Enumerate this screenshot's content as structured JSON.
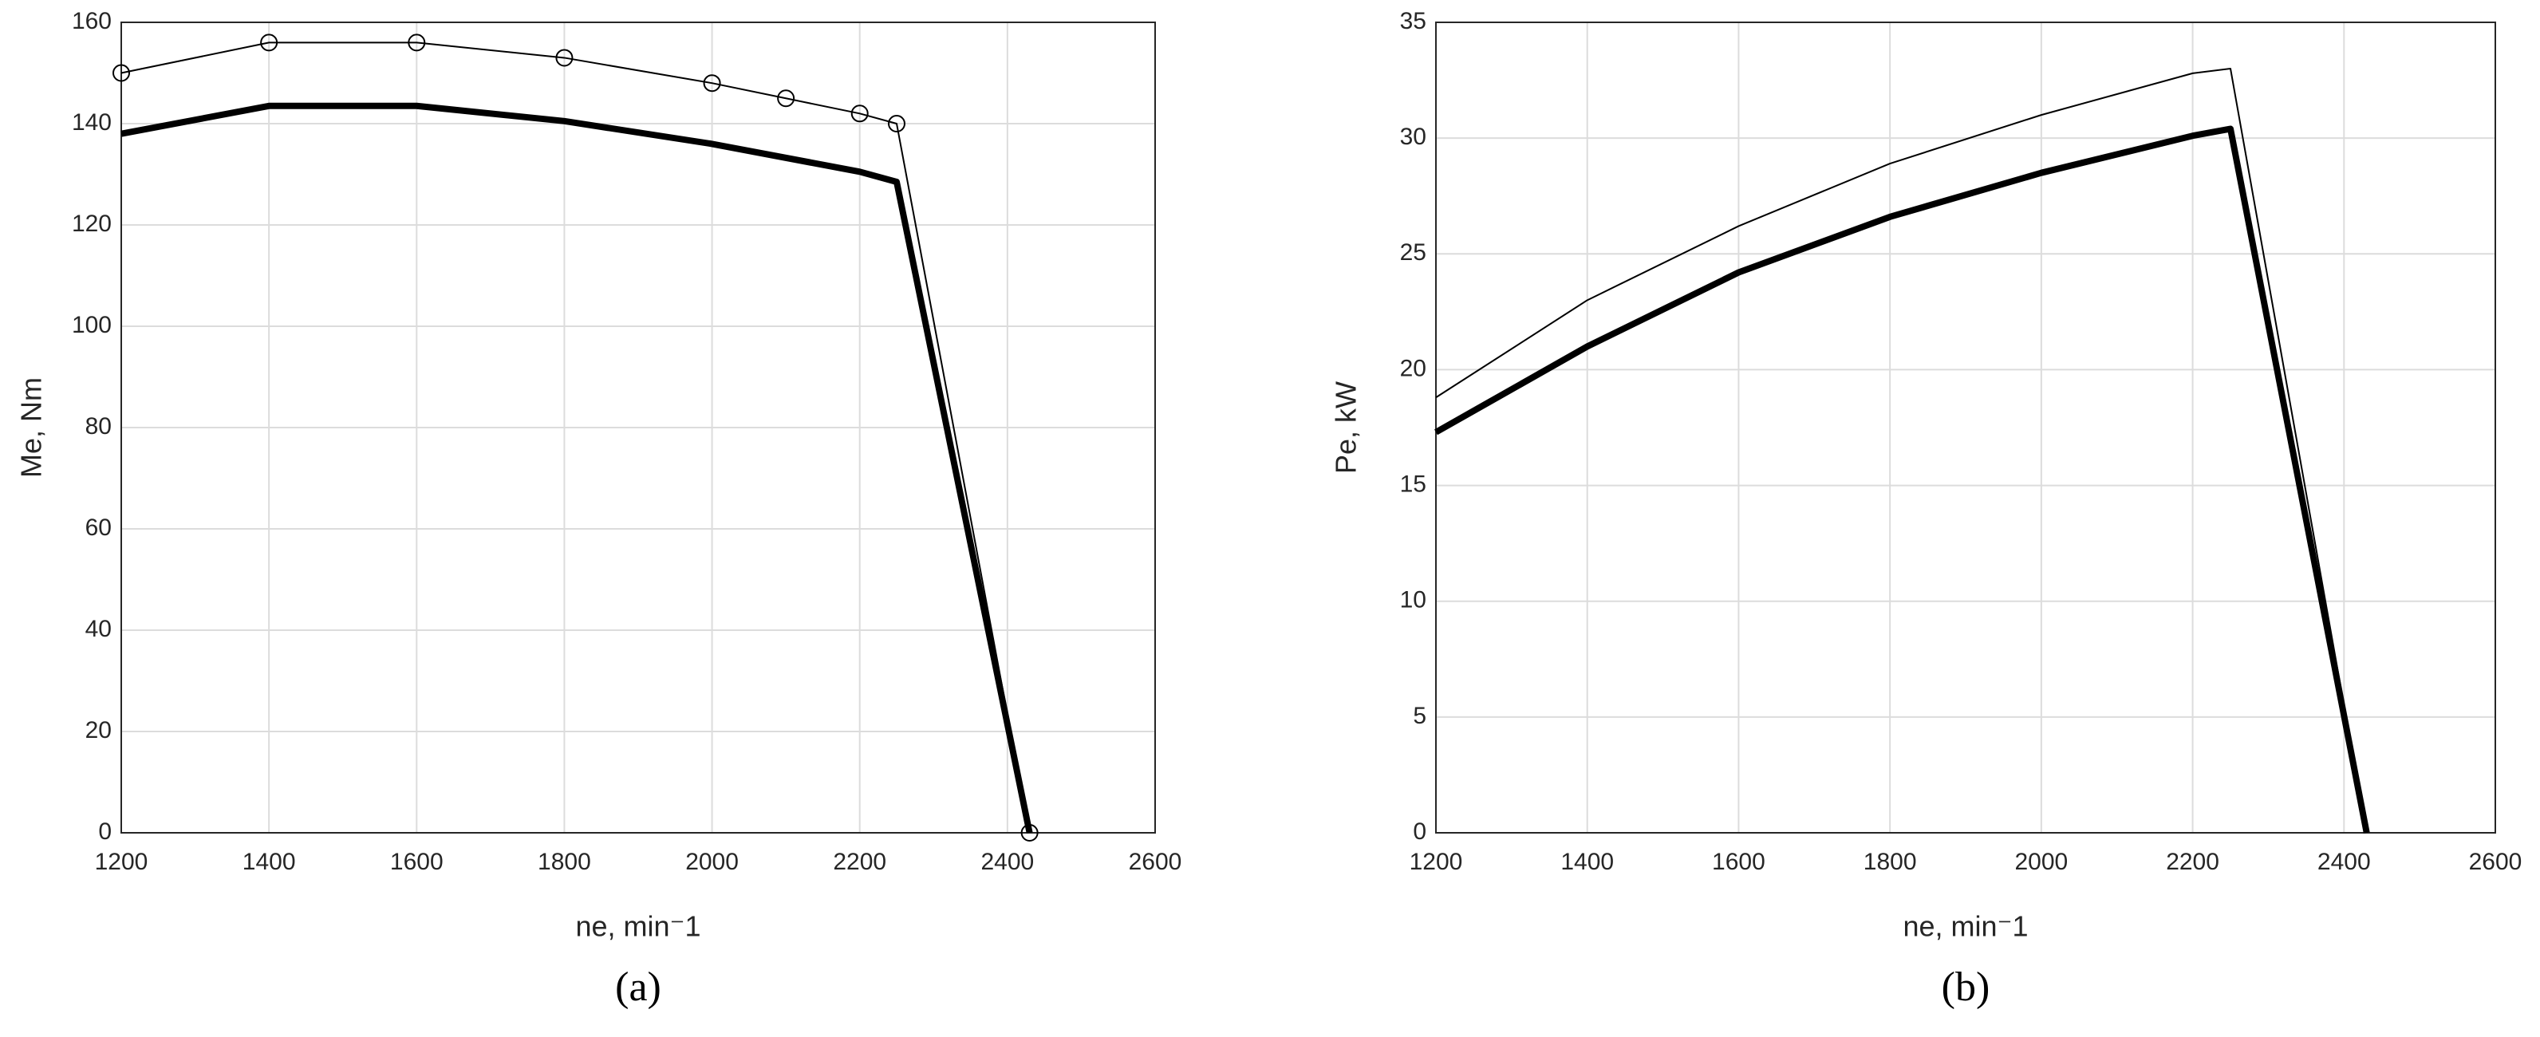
{
  "chart_data": [
    {
      "type": "line",
      "caption": "(a)",
      "xlabel": "ne, min⁻1",
      "ylabel": "Me, Nm",
      "xlim": [
        1200,
        2600
      ],
      "ylim": [
        0,
        160
      ],
      "xticks": [
        1200,
        1400,
        1600,
        1800,
        2000,
        2200,
        2400,
        2600
      ],
      "yticks": [
        0,
        20,
        40,
        60,
        80,
        100,
        120,
        140,
        160
      ],
      "grid": true,
      "series": [
        {
          "color": "#000000",
          "line_width": 1,
          "marker": "circle",
          "x": [
            1200,
            1400,
            1600,
            1800,
            2000,
            2100,
            2200,
            2250,
            2430
          ],
          "values": [
            150,
            156,
            156,
            153,
            148,
            145,
            142,
            140,
            0
          ]
        },
        {
          "color": "#000000",
          "line_width": 4,
          "x": [
            1200,
            1400,
            1600,
            1800,
            2000,
            2200,
            2250,
            2430
          ],
          "values": [
            138,
            143.5,
            143.5,
            140.5,
            136,
            130.5,
            128.5,
            0
          ]
        }
      ]
    },
    {
      "type": "line",
      "caption": "(b)",
      "xlabel": "ne, min⁻1",
      "ylabel": "Pe, kW",
      "xlim": [
        1200,
        2600
      ],
      "ylim": [
        0,
        35
      ],
      "xticks": [
        1200,
        1400,
        1600,
        1800,
        2000,
        2200,
        2400,
        2600
      ],
      "yticks": [
        0,
        5,
        10,
        15,
        20,
        25,
        30,
        35
      ],
      "grid": true,
      "series": [
        {
          "color": "#000000",
          "line_width": 1,
          "x": [
            1200,
            1400,
            1600,
            1800,
            2000,
            2200,
            2250,
            2430
          ],
          "values": [
            18.8,
            23,
            26.2,
            28.9,
            31,
            32.8,
            33,
            0
          ]
        },
        {
          "color": "#000000",
          "line_width": 4,
          "x": [
            1200,
            1400,
            1600,
            1800,
            2000,
            2200,
            2250,
            2430
          ],
          "values": [
            17.3,
            21,
            24.2,
            26.6,
            28.5,
            30.1,
            30.4,
            0
          ]
        }
      ]
    }
  ]
}
